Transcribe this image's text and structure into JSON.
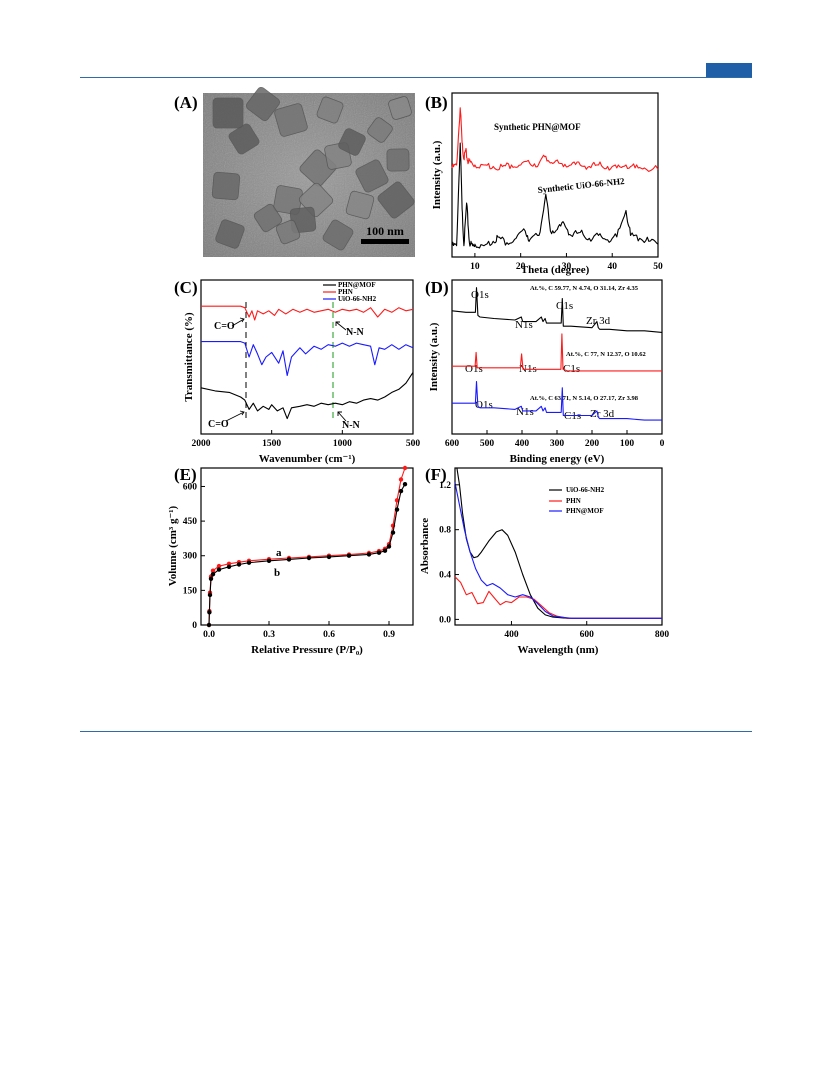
{
  "header_tag_color": "#1f5fa8",
  "colors": {
    "black": "#000000",
    "red": "#ff1a1a",
    "blue": "#1a1aff",
    "green": "#1a9a1a"
  },
  "chart_data": [
    {
      "panel": "(A)",
      "type": "image",
      "scale_bar": "100 nm"
    },
    {
      "panel": "(B)",
      "type": "line",
      "xlabel": "Theta (degree)",
      "ylabel": "Intensity (a.u.)",
      "xlim": [
        5,
        50
      ],
      "xticks": [
        10,
        20,
        30,
        40,
        50
      ],
      "series": [
        {
          "name": "Synthetic PHN@MOF",
          "color": "red",
          "x": [
            5,
            6,
            6.8,
            7.2,
            7.6,
            8,
            8.4,
            9,
            10,
            12,
            14,
            16,
            18,
            20,
            22,
            24,
            25.5,
            27,
            29,
            31,
            33,
            35,
            37,
            39,
            41,
            43,
            45,
            47,
            50
          ],
          "y": [
            0.58,
            0.6,
            0.99,
            0.75,
            0.64,
            0.7,
            0.63,
            0.62,
            0.6,
            0.6,
            0.59,
            0.59,
            0.6,
            0.6,
            0.61,
            0.61,
            0.66,
            0.61,
            0.61,
            0.6,
            0.6,
            0.59,
            0.6,
            0.59,
            0.58,
            0.6,
            0.58,
            0.58,
            0.57
          ]
        },
        {
          "name": "Synthetic UiO-66-NH2",
          "color": "black",
          "x": [
            5,
            6,
            6.8,
            7.2,
            7.6,
            8.2,
            8.8,
            9.5,
            10,
            12,
            14,
            15,
            17,
            19,
            21,
            22,
            24,
            25.5,
            26.5,
            28,
            29.5,
            31,
            33,
            35,
            37,
            39,
            41,
            43,
            44,
            46,
            48,
            50
          ],
          "y": [
            0.05,
            0.05,
            0.75,
            0.3,
            0.05,
            0.34,
            0.07,
            0.05,
            0.06,
            0.05,
            0.08,
            0.11,
            0.07,
            0.1,
            0.15,
            0.09,
            0.12,
            0.4,
            0.15,
            0.16,
            0.2,
            0.12,
            0.14,
            0.1,
            0.12,
            0.09,
            0.11,
            0.29,
            0.12,
            0.1,
            0.08,
            0.06
          ]
        }
      ]
    },
    {
      "panel": "(C)",
      "type": "line",
      "xlabel": "Wavenumber (cm⁻¹)",
      "ylabel": "Transmittance (%)",
      "xlim": [
        2000,
        500
      ],
      "xticks": [
        2000,
        1500,
        1000,
        500
      ],
      "legend": [
        "PHN@MOF",
        "PHN",
        "UiO-66-NH2"
      ],
      "annotations": [
        "C=O",
        "N-N",
        "C=O",
        "N-N"
      ],
      "series": [
        {
          "name": "PHN",
          "color": "red",
          "x": [
            2000,
            1720,
            1690,
            1660,
            1640,
            1620,
            1600,
            1560,
            1520,
            1480,
            1450,
            1400,
            1350,
            1300,
            1250,
            1200,
            1150,
            1100,
            1050,
            1000,
            950,
            900,
            850,
            800,
            750,
            700,
            650,
            600,
            550,
            500
          ],
          "y": [
            0.83,
            0.83,
            0.82,
            0.76,
            0.8,
            0.74,
            0.8,
            0.78,
            0.8,
            0.77,
            0.81,
            0.78,
            0.81,
            0.79,
            0.81,
            0.79,
            0.8,
            0.81,
            0.79,
            0.81,
            0.8,
            0.81,
            0.79,
            0.82,
            0.76,
            0.81,
            0.79,
            0.82,
            0.8,
            0.81
          ]
        },
        {
          "name": "UiO-66-NH2",
          "color": "blue",
          "x": [
            2000,
            1720,
            1690,
            1660,
            1630,
            1600,
            1570,
            1540,
            1500,
            1450,
            1420,
            1390,
            1360,
            1300,
            1260,
            1200,
            1150,
            1100,
            1050,
            1000,
            950,
            900,
            850,
            800,
            770,
            740,
            700,
            650,
            600,
            550,
            500
          ],
          "y": [
            0.6,
            0.6,
            0.59,
            0.5,
            0.58,
            0.52,
            0.45,
            0.5,
            0.53,
            0.46,
            0.54,
            0.38,
            0.5,
            0.56,
            0.52,
            0.57,
            0.55,
            0.58,
            0.57,
            0.59,
            0.57,
            0.59,
            0.58,
            0.57,
            0.45,
            0.56,
            0.55,
            0.58,
            0.55,
            0.58,
            0.56
          ]
        },
        {
          "name": "PHN@MOF",
          "color": "black",
          "x": [
            2000,
            1900,
            1800,
            1720,
            1690,
            1660,
            1630,
            1600,
            1560,
            1520,
            1500,
            1460,
            1420,
            1390,
            1360,
            1300,
            1250,
            1200,
            1150,
            1100,
            1050,
            1000,
            950,
            900,
            850,
            800,
            750,
            700,
            650,
            600,
            550,
            500
          ],
          "y": [
            0.3,
            0.28,
            0.27,
            0.24,
            0.22,
            0.16,
            0.2,
            0.15,
            0.18,
            0.16,
            0.19,
            0.15,
            0.17,
            0.1,
            0.17,
            0.18,
            0.19,
            0.18,
            0.2,
            0.19,
            0.2,
            0.19,
            0.21,
            0.2,
            0.22,
            0.23,
            0.22,
            0.24,
            0.27,
            0.29,
            0.33,
            0.4
          ]
        }
      ]
    },
    {
      "panel": "(D)",
      "type": "line",
      "xlabel": "Binding energy (eV)",
      "ylabel": "Intensity (a.u.)",
      "xlim": [
        600,
        0
      ],
      "xticks": [
        600,
        500,
        400,
        300,
        200,
        100,
        0
      ],
      "peak_labels": [
        "O1s",
        "N1s",
        "C1s",
        "Zr 3d",
        "O1s",
        "N1s",
        "C1s",
        "O1s",
        "N1s",
        "C1s",
        "Zr 3d"
      ],
      "composition": [
        "At.%, C 59.77, N 4.74, O 31.14, Zr 4.35",
        "At.%, C 77, N 12.37, O 10.62",
        "At.%, C 63.71, N 5.14, O 27.17, Zr 3.98"
      ],
      "series": [
        {
          "name": "UiO-66-NH2",
          "color": "black",
          "x": [
            600,
            560,
            540,
            533,
            530,
            526,
            520,
            480,
            420,
            402,
            398,
            360,
            345,
            340,
            334,
            330,
            300,
            288,
            285,
            282,
            260,
            200,
            186,
            182,
            178,
            150,
            100,
            50,
            0
          ],
          "y": [
            0.8,
            0.79,
            0.79,
            0.79,
            0.95,
            0.77,
            0.76,
            0.75,
            0.74,
            0.76,
            0.73,
            0.73,
            0.76,
            0.73,
            0.75,
            0.72,
            0.72,
            0.72,
            0.88,
            0.7,
            0.7,
            0.69,
            0.73,
            0.69,
            0.68,
            0.68,
            0.67,
            0.67,
            0.66
          ]
        },
        {
          "name": "PHN",
          "color": "red",
          "x": [
            600,
            540,
            534,
            531,
            528,
            520,
            450,
            405,
            401,
            397,
            350,
            300,
            289,
            286,
            283,
            270,
            200,
            100,
            0
          ],
          "y": [
            0.44,
            0.44,
            0.44,
            0.53,
            0.43,
            0.43,
            0.43,
            0.43,
            0.52,
            0.42,
            0.42,
            0.42,
            0.42,
            0.65,
            0.42,
            0.41,
            0.41,
            0.41,
            0.41
          ]
        },
        {
          "name": "PHN@MOF",
          "color": "blue",
          "x": [
            600,
            560,
            540,
            533,
            530,
            526,
            520,
            480,
            420,
            402,
            398,
            360,
            345,
            340,
            334,
            330,
            300,
            288,
            285,
            282,
            260,
            200,
            186,
            182,
            178,
            150,
            100,
            50,
            0
          ],
          "y": [
            0.2,
            0.2,
            0.2,
            0.2,
            0.34,
            0.18,
            0.17,
            0.17,
            0.16,
            0.18,
            0.15,
            0.15,
            0.18,
            0.15,
            0.17,
            0.14,
            0.14,
            0.14,
            0.3,
            0.12,
            0.12,
            0.12,
            0.15,
            0.11,
            0.1,
            0.1,
            0.1,
            0.09,
            0.09
          ]
        }
      ]
    },
    {
      "panel": "(E)",
      "type": "line",
      "xlabel": "Relative Pressure (P/P₀)",
      "ylabel": "Volume (cm³ g⁻¹)",
      "xlim": [
        -0.04,
        1.02
      ],
      "ylim": [
        0,
        680
      ],
      "xticks": [
        0.0,
        0.3,
        0.6,
        0.9
      ],
      "yticks": [
        0,
        150,
        300,
        450,
        600
      ],
      "curve_labels": [
        "a",
        "b"
      ],
      "series": [
        {
          "name": "a",
          "color": "red",
          "x": [
            0,
            0.002,
            0.005,
            0.01,
            0.02,
            0.05,
            0.1,
            0.15,
            0.2,
            0.3,
            0.4,
            0.5,
            0.6,
            0.7,
            0.8,
            0.85,
            0.88,
            0.9,
            0.92,
            0.94,
            0.96,
            0.98
          ],
          "y": [
            0,
            60,
            140,
            210,
            235,
            255,
            265,
            272,
            278,
            285,
            290,
            295,
            300,
            305,
            312,
            320,
            330,
            350,
            430,
            540,
            630,
            680
          ]
        },
        {
          "name": "b",
          "color": "black",
          "x": [
            0,
            0.002,
            0.005,
            0.01,
            0.02,
            0.05,
            0.1,
            0.15,
            0.2,
            0.3,
            0.4,
            0.5,
            0.6,
            0.7,
            0.8,
            0.85,
            0.88,
            0.9,
            0.92,
            0.94,
            0.96,
            0.98
          ],
          "y": [
            0,
            55,
            130,
            200,
            220,
            240,
            252,
            262,
            270,
            278,
            284,
            290,
            295,
            300,
            306,
            313,
            322,
            340,
            400,
            500,
            580,
            610
          ]
        }
      ]
    },
    {
      "panel": "(F)",
      "type": "line",
      "xlabel": "Wavelength (nm)",
      "ylabel": "Absorbance",
      "xlim": [
        250,
        800
      ],
      "ylim": [
        -0.05,
        1.35
      ],
      "xticks": [
        400,
        600,
        800
      ],
      "yticks": [
        0.0,
        0.4,
        0.8,
        1.2
      ],
      "legend": [
        "UiO-66-NH2",
        "PHN",
        "PHN@MOF"
      ],
      "series": [
        {
          "name": "UiO-66-NH2",
          "color": "black",
          "x": [
            255,
            262,
            270,
            280,
            290,
            300,
            310,
            320,
            340,
            360,
            375,
            390,
            410,
            430,
            450,
            470,
            490,
            510,
            550,
            600,
            700,
            800
          ],
          "y": [
            1.35,
            1.2,
            0.95,
            0.72,
            0.6,
            0.55,
            0.56,
            0.6,
            0.7,
            0.78,
            0.8,
            0.75,
            0.6,
            0.4,
            0.22,
            0.1,
            0.04,
            0.02,
            0.01,
            0.01,
            0.01,
            0.01
          ]
        },
        {
          "name": "PHN",
          "color": "red",
          "x": [
            250,
            265,
            280,
            295,
            310,
            325,
            340,
            355,
            370,
            385,
            400,
            420,
            440,
            460,
            480,
            500,
            520,
            550,
            600,
            700,
            800
          ],
          "y": [
            0.38,
            0.33,
            0.22,
            0.24,
            0.14,
            0.15,
            0.25,
            0.19,
            0.13,
            0.16,
            0.15,
            0.2,
            0.2,
            0.18,
            0.12,
            0.06,
            0.03,
            0.01,
            0.01,
            0.01,
            0.01
          ]
        },
        {
          "name": "PHN@MOF",
          "color": "blue",
          "x": [
            250,
            260,
            275,
            290,
            305,
            320,
            335,
            350,
            370,
            390,
            410,
            430,
            450,
            470,
            490,
            510,
            530,
            560,
            600,
            700,
            800
          ],
          "y": [
            1.22,
            1.05,
            0.8,
            0.6,
            0.45,
            0.35,
            0.3,
            0.32,
            0.28,
            0.22,
            0.2,
            0.22,
            0.2,
            0.14,
            0.07,
            0.03,
            0.02,
            0.01,
            0.01,
            0.01,
            0.01
          ]
        }
      ]
    }
  ]
}
